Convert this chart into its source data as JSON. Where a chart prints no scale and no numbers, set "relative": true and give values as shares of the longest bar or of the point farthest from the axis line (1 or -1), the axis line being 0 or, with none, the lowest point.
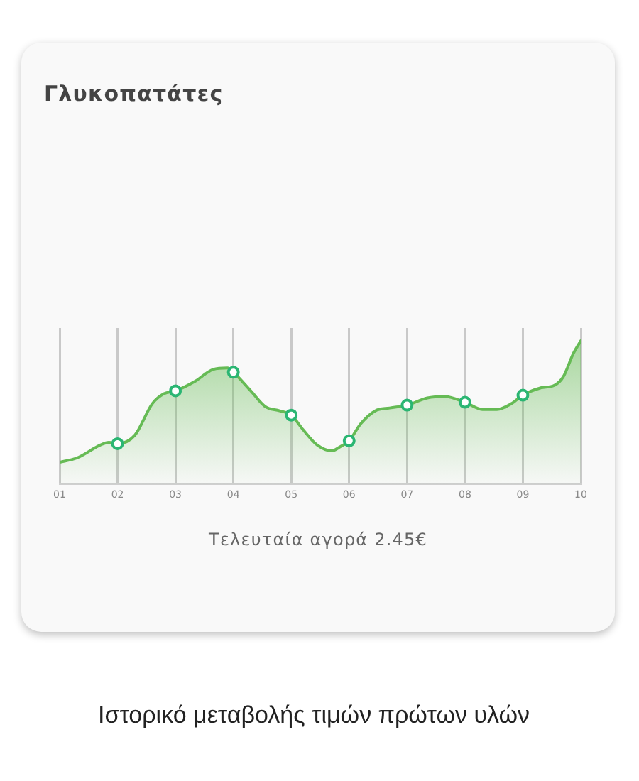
{
  "chart_data": {
    "type": "area",
    "title": "Γλυκοπατάτες",
    "annotations": [
      "Τελευταία αγορά 2.45€",
      "Ιστορικό μεταβολής τιμών πρώτων υλών"
    ],
    "relative": true,
    "xlim": [
      1,
      10
    ],
    "xticks": [
      {
        "value": 1,
        "label": "01"
      },
      {
        "value": 2,
        "label": "02"
      },
      {
        "value": 3,
        "label": "03"
      },
      {
        "value": 4,
        "label": "04"
      },
      {
        "value": 5,
        "label": "05"
      },
      {
        "value": 6,
        "label": "06"
      },
      {
        "value": 7,
        "label": "07"
      },
      {
        "value": 8,
        "label": "08"
      },
      {
        "value": 9,
        "label": "09"
      },
      {
        "value": 10,
        "label": "10"
      }
    ],
    "grid": "x",
    "marker": "circle",
    "line_style": "solid",
    "series": [
      {
        "color": "#66bb55",
        "marker": "none",
        "x": [
          1,
          1.3,
          1.7,
          1.85,
          2,
          2.3,
          2.6,
          2.8,
          3,
          3.35,
          3.65,
          3.9,
          4,
          4.3,
          4.55,
          4.8,
          5,
          5.2,
          5.45,
          5.7,
          5.85,
          6,
          6.2,
          6.45,
          6.7,
          7,
          7.35,
          7.65,
          8,
          8.3,
          8.55,
          8.8,
          9,
          9.3,
          9.55,
          9.7,
          9.87,
          10
        ],
        "values": [
          0.15,
          0.18,
          0.27,
          0.29,
          0.28,
          0.34,
          0.56,
          0.63,
          0.65,
          0.72,
          0.8,
          0.81,
          0.78,
          0.65,
          0.54,
          0.51,
          0.48,
          0.38,
          0.27,
          0.23,
          0.26,
          0.3,
          0.42,
          0.51,
          0.53,
          0.55,
          0.6,
          0.61,
          0.57,
          0.52,
          0.52,
          0.56,
          0.62,
          0.67,
          0.69,
          0.75,
          0.91,
          1.0
        ]
      },
      {
        "type": "scatter",
        "color": "#2bb673",
        "x": [
          2,
          3,
          4,
          5,
          6,
          7,
          8,
          9
        ],
        "values": [
          0.28,
          0.65,
          0.78,
          0.48,
          0.3,
          0.55,
          0.57,
          0.62
        ]
      }
    ]
  }
}
